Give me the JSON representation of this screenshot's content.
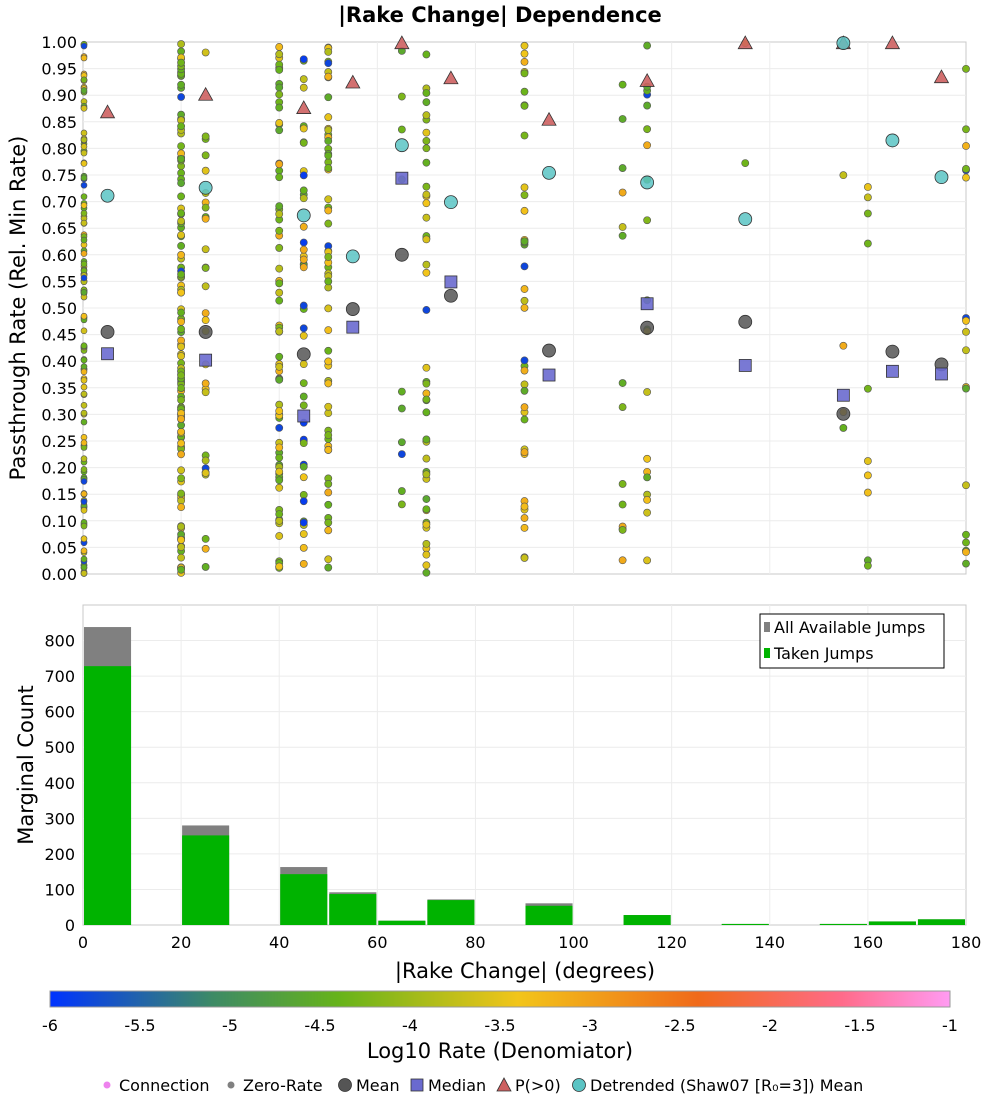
{
  "chart_data": [
    {
      "type": "scatter",
      "title": "|Rake Change| Dependence",
      "ylabel": "Passthrough Rate (Rel. Min Rate)",
      "xlim": [
        0,
        180
      ],
      "ylim": [
        0,
        1
      ],
      "y_ticks": [
        "0.00",
        "0.05",
        "0.10",
        "0.15",
        "0.20",
        "0.25",
        "0.30",
        "0.35",
        "0.40",
        "0.45",
        "0.50",
        "0.55",
        "0.60",
        "0.65",
        "0.70",
        "0.75",
        "0.80",
        "0.85",
        "0.90",
        "0.95",
        "1.00"
      ],
      "grid": true,
      "colors": {
        "mean": "#555555",
        "median": "#6a6acf",
        "p_gt0": "#cd6060",
        "detrended": "#5bc4c4",
        "connection": "#ee82ee",
        "zero_rate": "#808080"
      },
      "point_columns": [
        {
          "x": 0,
          "band": [
            0,
            1
          ]
        },
        {
          "x": 20,
          "band": [
            0,
            1
          ]
        },
        {
          "x": 25,
          "band": [
            0,
            1
          ]
        },
        {
          "x": 40,
          "band": [
            0,
            1
          ]
        },
        {
          "x": 45,
          "band": [
            0,
            1
          ]
        },
        {
          "x": 50,
          "band": [
            0,
            1
          ]
        },
        {
          "x": 65,
          "band": [
            0,
            1
          ]
        },
        {
          "x": 70,
          "band": [
            0,
            1
          ]
        },
        {
          "x": 90,
          "band": [
            0,
            1
          ]
        },
        {
          "x": 110,
          "band": [
            0,
            1
          ]
        },
        {
          "x": 115,
          "band": [
            0,
            1
          ]
        },
        {
          "x": 135,
          "band": [
            0,
            1
          ]
        },
        {
          "x": 155,
          "band": [
            0,
            1
          ]
        },
        {
          "x": 160,
          "band": [
            0,
            1
          ]
        },
        {
          "x": 180,
          "band": [
            0,
            1
          ]
        }
      ],
      "series": [
        {
          "name": "Mean",
          "points": [
            [
              5,
              0.455
            ],
            [
              25,
              0.455
            ],
            [
              45,
              0.413
            ],
            [
              55,
              0.498
            ],
            [
              65,
              0.6
            ],
            [
              75,
              0.523
            ],
            [
              95,
              0.42
            ],
            [
              115,
              0.463
            ],
            [
              135,
              0.474
            ],
            [
              155,
              0.301
            ],
            [
              165,
              0.418
            ],
            [
              175,
              0.394
            ]
          ]
        },
        {
          "name": "Median",
          "points": [
            [
              5,
              0.414
            ],
            [
              25,
              0.402
            ],
            [
              45,
              0.297
            ],
            [
              55,
              0.464
            ],
            [
              65,
              0.744
            ],
            [
              75,
              0.549
            ],
            [
              95,
              0.374
            ],
            [
              115,
              0.508
            ],
            [
              135,
              0.392
            ],
            [
              155,
              0.336
            ],
            [
              165,
              0.381
            ],
            [
              175,
              0.376
            ]
          ]
        },
        {
          "name": "P(>0)",
          "points": [
            [
              5,
              0.868
            ],
            [
              25,
              0.901
            ],
            [
              45,
              0.876
            ],
            [
              55,
              0.924
            ],
            [
              65,
              0.998
            ],
            [
              75,
              0.932
            ],
            [
              95,
              0.854
            ],
            [
              115,
              0.927
            ],
            [
              135,
              0.998
            ],
            [
              155,
              0.998
            ],
            [
              165,
              0.998
            ],
            [
              175,
              0.934
            ]
          ]
        },
        {
          "name": "Detrended (Shaw07 [R₀=3]) Mean",
          "points": [
            [
              5,
              0.711
            ],
            [
              25,
              0.726
            ],
            [
              45,
              0.674
            ],
            [
              55,
              0.597
            ],
            [
              65,
              0.806
            ],
            [
              75,
              0.699
            ],
            [
              95,
              0.754
            ],
            [
              115,
              0.736
            ],
            [
              135,
              0.667
            ],
            [
              155,
              0.998
            ],
            [
              165,
              0.815
            ],
            [
              175,
              0.746
            ]
          ]
        }
      ]
    },
    {
      "type": "bar",
      "xlabel": "|Rake Change| (degrees)",
      "ylabel": "Marginal Count",
      "xlim": [
        0,
        180
      ],
      "ylim": [
        0,
        900
      ],
      "x_ticks": [
        "0",
        "20",
        "40",
        "60",
        "80",
        "100",
        "120",
        "140",
        "160",
        "180"
      ],
      "y_ticks": [
        "0",
        "100",
        "200",
        "300",
        "400",
        "500",
        "600",
        "700",
        "800"
      ],
      "legend_position": "top-right",
      "grid": true,
      "bin_width": 10,
      "series": [
        {
          "name": "All Available Jumps",
          "color": "#808080",
          "bins": [
            [
              0,
              838
            ],
            [
              20,
              280
            ],
            [
              40,
              163
            ],
            [
              50,
              92
            ],
            [
              60,
              12
            ],
            [
              70,
              72
            ],
            [
              90,
              61
            ],
            [
              110,
              28
            ],
            [
              130,
              3
            ],
            [
              150,
              3
            ],
            [
              160,
              10
            ],
            [
              170,
              16
            ]
          ]
        },
        {
          "name": "Taken Jumps",
          "color": "#00b300",
          "bins": [
            [
              0,
              728
            ],
            [
              20,
              252
            ],
            [
              40,
              143
            ],
            [
              50,
              87
            ],
            [
              60,
              12
            ],
            [
              70,
              70
            ],
            [
              90,
              54
            ],
            [
              110,
              28
            ],
            [
              130,
              3
            ],
            [
              150,
              3
            ],
            [
              160,
              10
            ],
            [
              170,
              16
            ]
          ]
        }
      ]
    },
    {
      "type": "colorbar",
      "label": "Log10 Rate (Denomiator)",
      "range": [
        -6,
        -1
      ],
      "ticks": [
        "-6",
        "-5.5",
        "-5",
        "-4.5",
        "-4",
        "-3.5",
        "-3",
        "-2.5",
        "-2",
        "-1.5",
        "-1"
      ],
      "color_stops": [
        "#0033ff",
        "#3d8a66",
        "#66b31a",
        "#f2c51a",
        "#f06a1a",
        "#ff6b8a",
        "#ff9bf2"
      ]
    }
  ],
  "legend_bottom": [
    {
      "label": "Connection",
      "color": "#ee82ee",
      "marker": "dot"
    },
    {
      "label": "Zero-Rate",
      "color": "#808080",
      "marker": "dot"
    },
    {
      "label": "Mean",
      "color": "#555555",
      "marker": "circle"
    },
    {
      "label": "Median",
      "color": "#6a6acf",
      "marker": "square"
    },
    {
      "label": "P(>0)",
      "color": "#cd6060",
      "marker": "triangle"
    },
    {
      "label": "Detrended (Shaw07 [R₀=3]) Mean",
      "color": "#5bc4c4",
      "marker": "circle"
    }
  ]
}
